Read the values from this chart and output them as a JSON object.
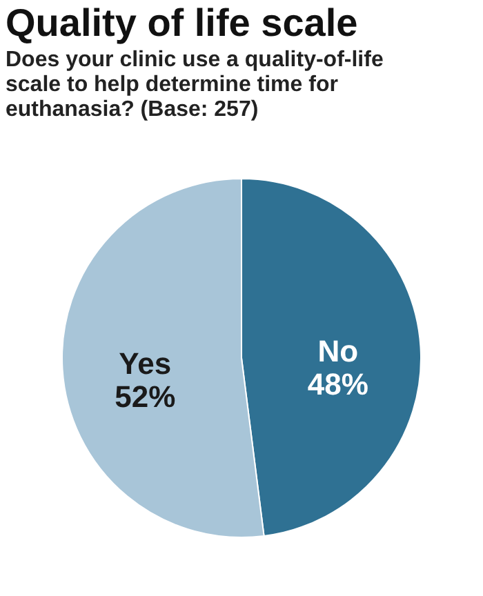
{
  "chart_data": {
    "type": "pie",
    "title": "Quality of life scale",
    "subtitle": "Does your clinic use a quality-of-life scale to help determine time for euthanasia? (Base: 257)",
    "categories": [
      "No",
      "Yes"
    ],
    "values": [
      48,
      52
    ],
    "value_labels": [
      "48%",
      "52%"
    ],
    "colors": [
      "#2f7193",
      "#a8c5d8"
    ],
    "legend": false
  }
}
